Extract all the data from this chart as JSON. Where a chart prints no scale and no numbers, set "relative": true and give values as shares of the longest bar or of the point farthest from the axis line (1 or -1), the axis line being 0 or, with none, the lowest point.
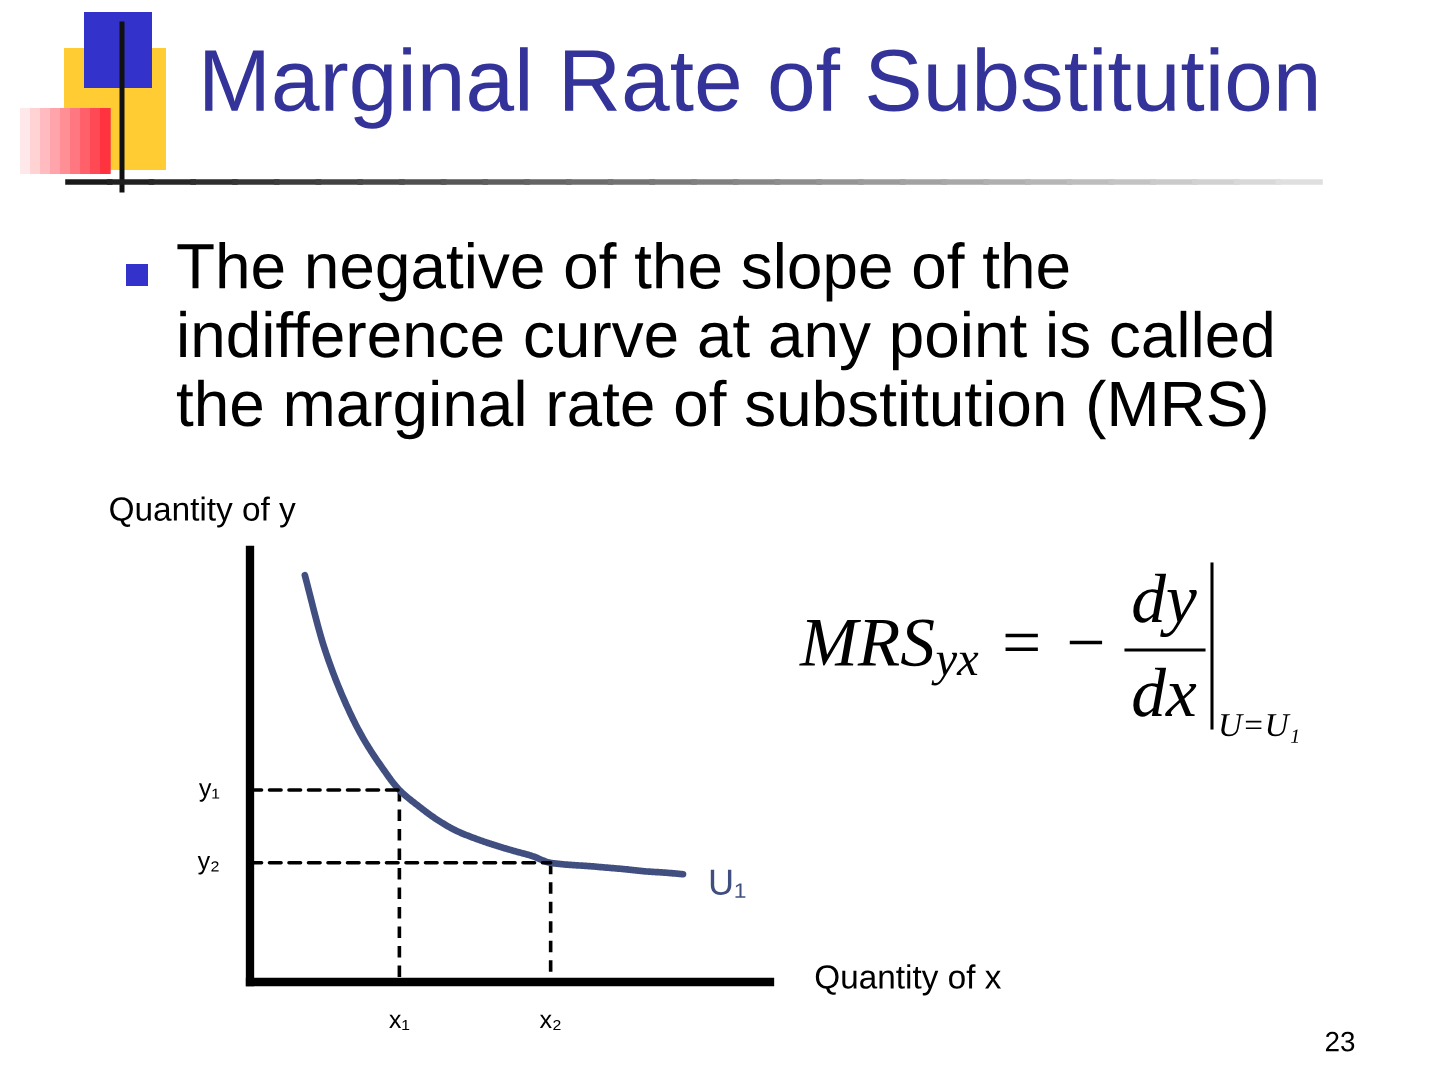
{
  "chart_data": {
    "type": "line",
    "title": "Marginal Rate of Substitution",
    "subtitle": "The negative of the slope of the\nindifference curve at any point is called\nthe marginal rate of substitution (MRS)",
    "xlabel": "Quantity of x",
    "ylabel": "Quantity of y",
    "relative": true,
    "grid": false,
    "categories": [
      null,
      null,
      null,
      null,
      null,
      "x₁",
      null,
      null,
      null,
      null,
      null,
      null,
      null,
      "x₂",
      null,
      null,
      null,
      null,
      null,
      null,
      null
    ],
    "series": [
      {
        "name": "U₁",
        "color": "#404f80",
        "values": [
          1,
          0.826,
          0.702,
          0.606,
          0.533,
          0.472,
          0.433,
          0.399,
          0.372,
          0.353,
          0.337,
          0.323,
          0.31,
          0.293,
          0.288,
          0.285,
          0.281,
          0.277,
          0.272,
          0.269,
          0.265
        ]
      },
      {
        "color": "#000000",
        "line_style": "dashed",
        "x": [
          "x₁",
          "x₁"
        ],
        "values": [
          0.472,
          0
        ]
      },
      {
        "color": "#000000",
        "line_style": "dashed",
        "x": [
          "x₂",
          "x₂"
        ],
        "values": [
          0.293,
          0
        ]
      }
    ],
    "annotations": [
      {
        "text": "y₁",
        "x": "x₁",
        "y": 0.472
      },
      {
        "text": "y₂",
        "x": "x₂",
        "y": 0.293
      },
      "MRS$_{yx}$ = −",
      "dy",
      "dx",
      "U=U₁",
      "23"
    ]
  }
}
